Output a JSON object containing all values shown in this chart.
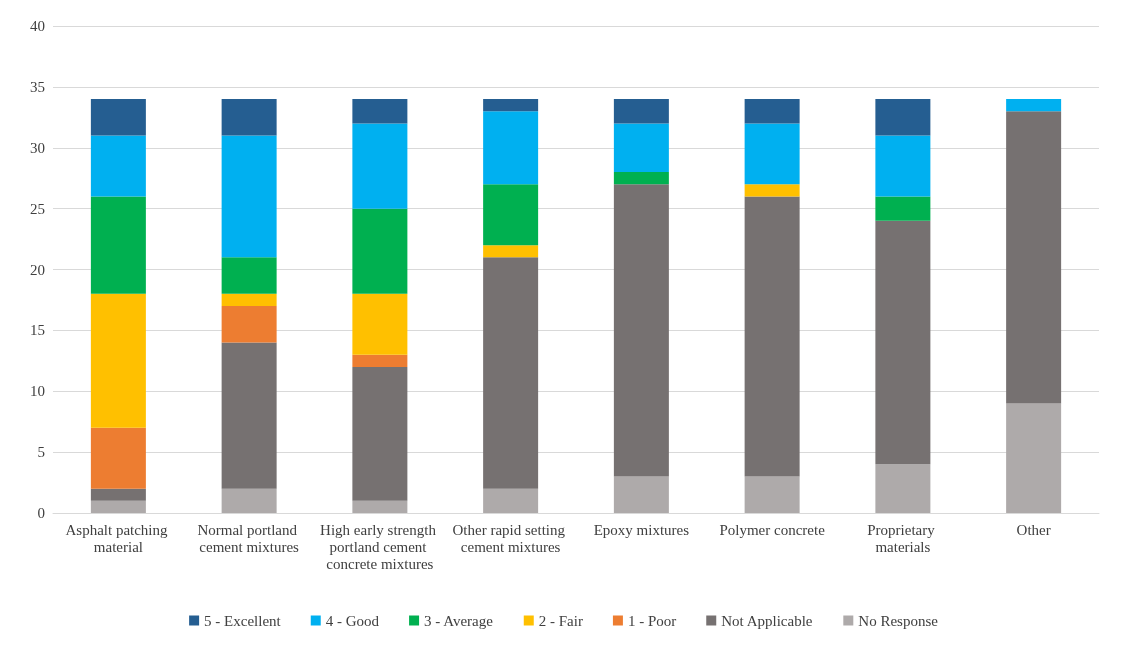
{
  "chart_data": {
    "type": "bar",
    "stacked": true,
    "categories": [
      "Asphalt patching material",
      "Normal portland cement mixtures",
      "High early strength portland cement concrete mixtures",
      "Other rapid setting cement mixtures",
      "Epoxy mixtures",
      "Polymer concrete",
      "Proprietary materials",
      "Other"
    ],
    "series": [
      {
        "name": "No Response",
        "color": "#aeaaaa",
        "values": [
          1,
          2,
          1,
          2,
          3,
          3,
          4,
          9
        ]
      },
      {
        "name": "Not Applicable",
        "color": "#767171",
        "values": [
          1,
          12,
          11,
          19,
          24,
          23,
          20,
          24
        ]
      },
      {
        "name": "1 - Poor",
        "color": "#ed7d31",
        "values": [
          5,
          3,
          1,
          0,
          0,
          0,
          0,
          0
        ]
      },
      {
        "name": "2 - Fair",
        "color": "#ffc000",
        "values": [
          11,
          1,
          5,
          1,
          0,
          1,
          0,
          0
        ]
      },
      {
        "name": "3 - Average",
        "color": "#00b050",
        "values": [
          8,
          3,
          7,
          5,
          1,
          0,
          2,
          0
        ]
      },
      {
        "name": "4 - Good",
        "color": "#00b0f0",
        "values": [
          5,
          10,
          7,
          6,
          4,
          5,
          5,
          1
        ]
      },
      {
        "name": "5 - Excellent",
        "color": "#255e91",
        "values": [
          3,
          3,
          2,
          1,
          2,
          2,
          3,
          0
        ]
      }
    ],
    "ylim": [
      0,
      40
    ],
    "yticks": [
      0,
      5,
      10,
      15,
      20,
      25,
      30,
      35,
      40
    ],
    "grid": "y",
    "legend": "bottom"
  }
}
